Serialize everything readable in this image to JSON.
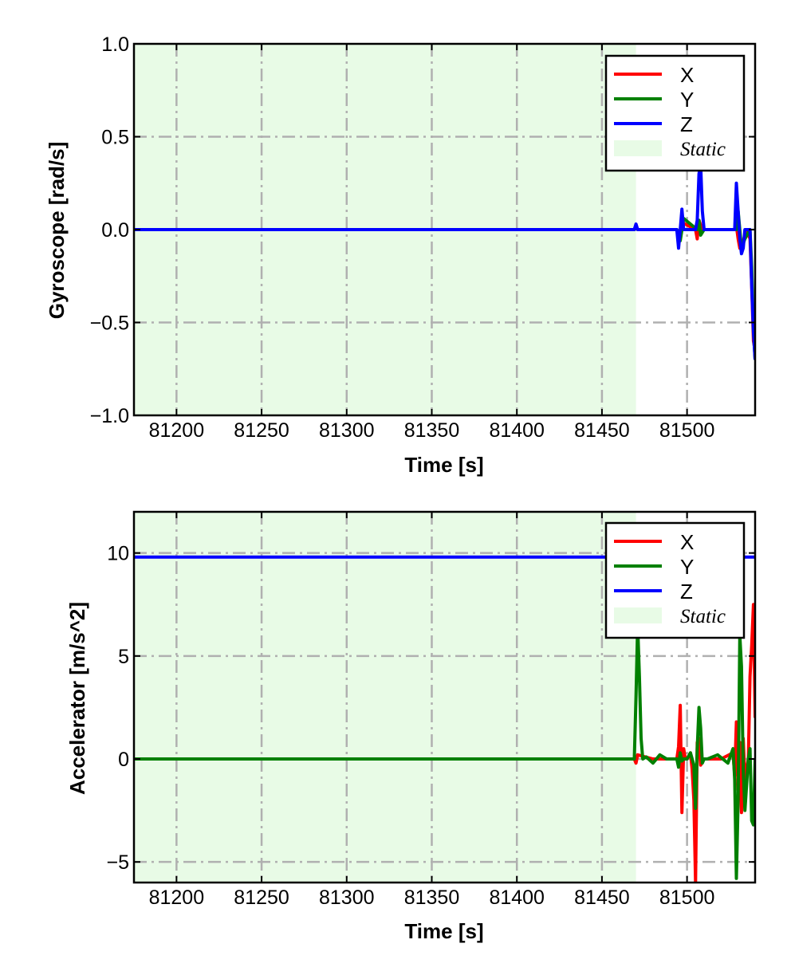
{
  "chart_data": [
    {
      "type": "line",
      "ylabel": "Gyroscope [rad/s]",
      "xlabel": "Time [s]",
      "xlim": [
        81175,
        81540
      ],
      "ylim": [
        -1.0,
        1.0
      ],
      "xticks": [
        81200,
        81250,
        81300,
        81350,
        81400,
        81450,
        81500
      ],
      "yticks": [
        -1.0,
        -0.5,
        0.0,
        0.5,
        1.0
      ],
      "xtick_labels": [
        "81200",
        "81250",
        "81300",
        "81350",
        "81400",
        "81450",
        "81500"
      ],
      "ytick_labels": [
        "−1.0",
        "−0.5",
        "0.0",
        "0.5",
        "1.0"
      ],
      "grid": true,
      "legend_position": "top-right",
      "static_region": [
        81175,
        81470
      ],
      "static_label": "Static",
      "series": [
        {
          "name": "X",
          "color": "#ff0000",
          "x": [
            81175,
            81469,
            81470,
            81471,
            81494,
            81496,
            81497,
            81505,
            81506,
            81507,
            81509,
            81520,
            81528,
            81529,
            81530,
            81531,
            81533,
            81535,
            81537,
            81538,
            81539,
            81540
          ],
          "y": [
            0.0,
            0.0,
            0.01,
            0.0,
            0.0,
            -0.05,
            0.04,
            0.0,
            -0.05,
            0.05,
            0.0,
            0.0,
            0.0,
            0.02,
            -0.05,
            -0.1,
            -0.06,
            0.0,
            -0.05,
            -0.3,
            -0.6,
            -0.65
          ]
        },
        {
          "name": "Y",
          "color": "#008000",
          "x": [
            81175,
            81469,
            81470,
            81471,
            81494,
            81496,
            81498,
            81506,
            81507,
            81508,
            81510,
            81520,
            81529,
            81530,
            81532,
            81534,
            81537,
            81538,
            81539,
            81540
          ],
          "y": [
            0.0,
            0.0,
            0.02,
            0.0,
            0.0,
            -0.06,
            0.06,
            0.0,
            0.05,
            -0.03,
            0.0,
            0.0,
            0.0,
            0.1,
            -0.1,
            -0.05,
            0.0,
            -0.2,
            -0.55,
            -0.7
          ]
        },
        {
          "name": "Z",
          "color": "#0000ff",
          "x": [
            81175,
            81469,
            81470,
            81471,
            81494,
            81495,
            81496,
            81497,
            81498,
            81505,
            81506,
            81507,
            81508,
            81509,
            81510,
            81520,
            81528,
            81529,
            81530,
            81531,
            81532,
            81533,
            81534,
            81537,
            81538,
            81539,
            81540
          ],
          "y": [
            0.0,
            0.0,
            0.03,
            0.0,
            0.0,
            -0.1,
            0.0,
            0.11,
            0.0,
            0.0,
            0.05,
            0.3,
            0.35,
            0.1,
            0.0,
            0.0,
            0.0,
            0.25,
            0.1,
            -0.05,
            -0.13,
            -0.1,
            0.0,
            0.0,
            -0.3,
            -0.55,
            -0.7
          ]
        }
      ]
    },
    {
      "type": "line",
      "ylabel": "Accelerator [m/s^2]",
      "xlabel": "Time [s]",
      "xlim": [
        81175,
        81540
      ],
      "ylim": [
        -6,
        12
      ],
      "xticks": [
        81200,
        81250,
        81300,
        81350,
        81400,
        81450,
        81500
      ],
      "yticks": [
        -5,
        0,
        5,
        10
      ],
      "xtick_labels": [
        "81200",
        "81250",
        "81300",
        "81350",
        "81400",
        "81450",
        "81500"
      ],
      "ytick_labels": [
        "−5",
        "0",
        "5",
        "10"
      ],
      "grid": true,
      "legend_position": "top-right",
      "static_region": [
        81175,
        81470
      ],
      "static_label": "Static",
      "series": [
        {
          "name": "X",
          "color": "#ff0000",
          "x": [
            81175,
            81469,
            81470,
            81471,
            81480,
            81494,
            81495,
            81496,
            81497,
            81498,
            81499,
            81500,
            81502,
            81503,
            81504,
            81505,
            81506,
            81507,
            81508,
            81510,
            81520,
            81527,
            81528,
            81529,
            81530,
            81531,
            81532,
            81533,
            81534,
            81536,
            81537,
            81538,
            81539,
            81540
          ],
          "y": [
            0.0,
            0.0,
            -0.2,
            0.2,
            0.0,
            0.0,
            0.6,
            2.6,
            -2.6,
            0.5,
            0.0,
            0.0,
            0.3,
            -0.5,
            -2.0,
            -6.0,
            0.8,
            1.0,
            -0.3,
            0.0,
            0.0,
            0.3,
            -0.8,
            1.8,
            -1.5,
            0.8,
            -2.6,
            1.0,
            -1.0,
            0.0,
            4.0,
            5.5,
            7.5,
            2.0
          ]
        },
        {
          "name": "Y",
          "color": "#008000",
          "x": [
            81175,
            81469,
            81470,
            81471,
            81472,
            81473,
            81474,
            81476,
            81480,
            81484,
            81488,
            81494,
            81495,
            81496,
            81497,
            81498,
            81500,
            81502,
            81504,
            81505,
            81506,
            81507,
            81508,
            81509,
            81510,
            81512,
            81518,
            81524,
            81527,
            81528,
            81529,
            81530,
            81531,
            81532,
            81533,
            81534,
            81536,
            81537,
            81538,
            81539,
            81540
          ],
          "y": [
            0.0,
            0.0,
            3.0,
            6.5,
            4.0,
            1.0,
            0.0,
            0.1,
            -0.2,
            0.2,
            0.0,
            0.0,
            -0.4,
            0.3,
            -0.1,
            0.0,
            0.0,
            0.3,
            -0.3,
            -2.4,
            0.5,
            2.5,
            1.5,
            -0.2,
            0.0,
            0.0,
            0.2,
            -0.2,
            0.5,
            -1.0,
            -5.8,
            -2.0,
            6.0,
            4.5,
            -0.5,
            -2.5,
            0.0,
            0.5,
            -3.0,
            -3.2,
            0.0
          ]
        },
        {
          "name": "Z",
          "color": "#0000ff",
          "x": [
            81175,
            81540
          ],
          "y": [
            9.8,
            9.8
          ]
        }
      ]
    }
  ]
}
